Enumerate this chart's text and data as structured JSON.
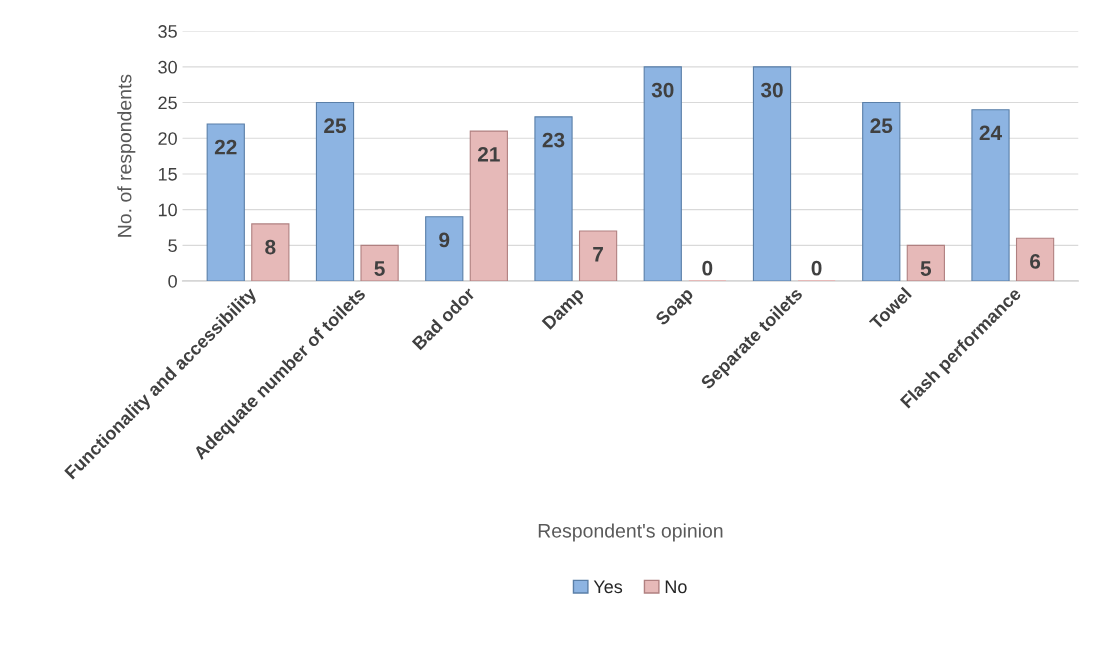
{
  "chart_data": {
    "type": "bar",
    "categories": [
      "Functionality and accessibility",
      "Adequate number of toilets",
      "Bad odor",
      "Damp",
      "Soap",
      "Separate toilets",
      "Towel",
      "Flash performance"
    ],
    "series": [
      {
        "name": "Yes",
        "color": "#8db4e2",
        "values": [
          22,
          25,
          9,
          23,
          30,
          30,
          25,
          24
        ]
      },
      {
        "name": "No",
        "color": "#e6b9b8",
        "values": [
          8,
          5,
          21,
          7,
          0,
          0,
          5,
          6
        ]
      }
    ],
    "xlabel": "Respondent's opinion",
    "ylabel": "No. of respondents",
    "ylim": [
      0,
      35
    ],
    "yticks": [
      0,
      5,
      10,
      15,
      20,
      25,
      30,
      35
    ],
    "grid": "y",
    "legend": "bottom",
    "data_labels": true
  }
}
